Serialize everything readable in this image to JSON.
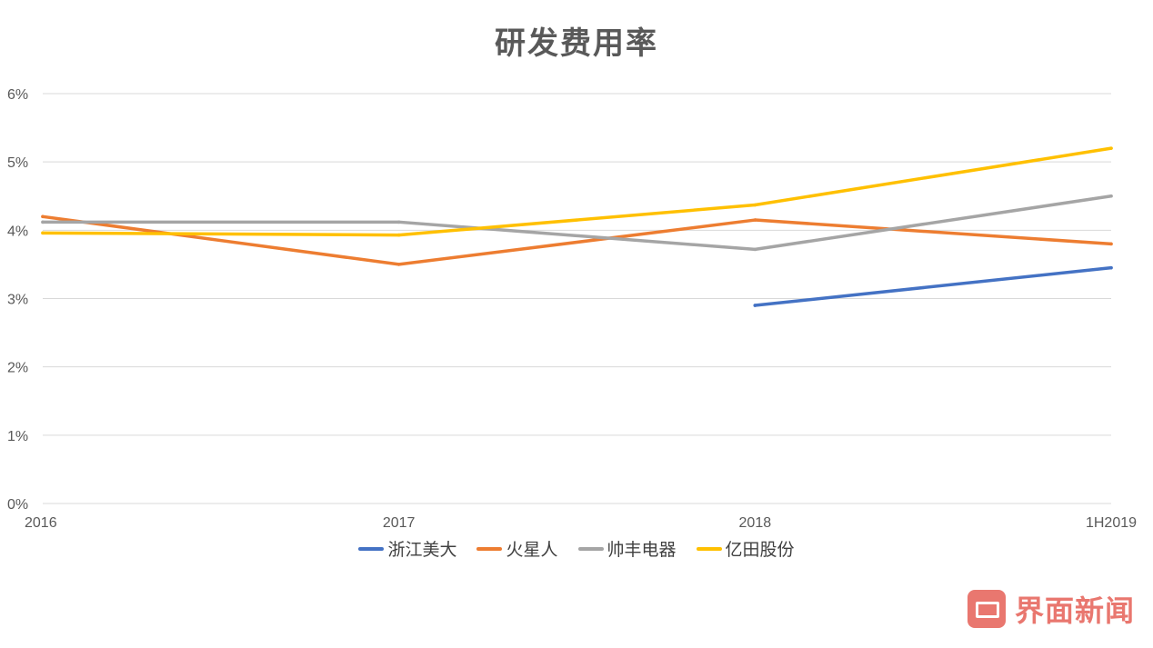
{
  "chart_data": {
    "type": "line",
    "title": "研发费用率",
    "xlabel": "",
    "ylabel": "",
    "categories": [
      "2016",
      "2017",
      "2018",
      "1H2019"
    ],
    "ylim": [
      0,
      6
    ],
    "y_ticks": [
      "0%",
      "1%",
      "2%",
      "3%",
      "4%",
      "5%",
      "6%"
    ],
    "grid": true,
    "legend_position": "bottom",
    "series": [
      {
        "name": "浙江美大",
        "color": "#4472C4",
        "values": [
          null,
          null,
          2.9,
          3.45
        ]
      },
      {
        "name": "火星人",
        "color": "#ED7D31",
        "values": [
          4.2,
          3.5,
          4.15,
          3.8
        ]
      },
      {
        "name": "帅丰电器",
        "color": "#A5A5A5",
        "values": [
          4.12,
          4.12,
          3.72,
          4.5
        ]
      },
      {
        "name": "亿田股份",
        "color": "#FFC000",
        "values": [
          3.96,
          3.93,
          4.37,
          5.2
        ]
      }
    ]
  },
  "watermark": {
    "icon": "jiemian-logo-icon",
    "text": "界面新闻"
  }
}
